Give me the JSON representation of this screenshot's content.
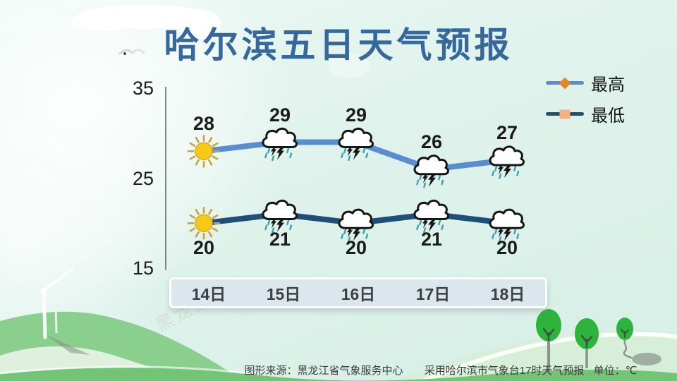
{
  "title": "哈尔滨五日天气预报",
  "legend": [
    {
      "label": "最高",
      "line_color": "#5a8dd0",
      "marker": "diamond",
      "marker_color": "#e1882f"
    },
    {
      "label": "最低",
      "line_color": "#1f4e79",
      "marker": "square",
      "marker_color": "#f1b285"
    }
  ],
  "chart_data": {
    "type": "line",
    "categories": [
      "14日",
      "15日",
      "16日",
      "17日",
      "18日"
    ],
    "series": [
      {
        "name": "最高",
        "values": [
          28,
          29,
          29,
          26,
          27
        ],
        "color": "#5a8dd0",
        "icons": [
          "sunny",
          "thunderstorm",
          "thunderstorm",
          "thunderstorm",
          "thunderstorm"
        ]
      },
      {
        "name": "最低",
        "values": [
          20,
          21,
          20,
          21,
          20
        ],
        "color": "#1f4e79",
        "icons": [
          "sunny",
          "thunderstorm",
          "thunderstorm",
          "thunderstorm",
          "thunderstorm"
        ]
      }
    ],
    "yticks": [
      35,
      25,
      15
    ],
    "ylim": [
      15,
      35
    ],
    "grid": false,
    "legend_position": "top-right",
    "unit": "℃"
  },
  "footer": {
    "source": "图形来源：黑龙江省气象服务中心",
    "note": "采用哈尔滨市气象台17时天气预报",
    "unit": "单位：℃"
  },
  "watermark": "黑龙江气象"
}
